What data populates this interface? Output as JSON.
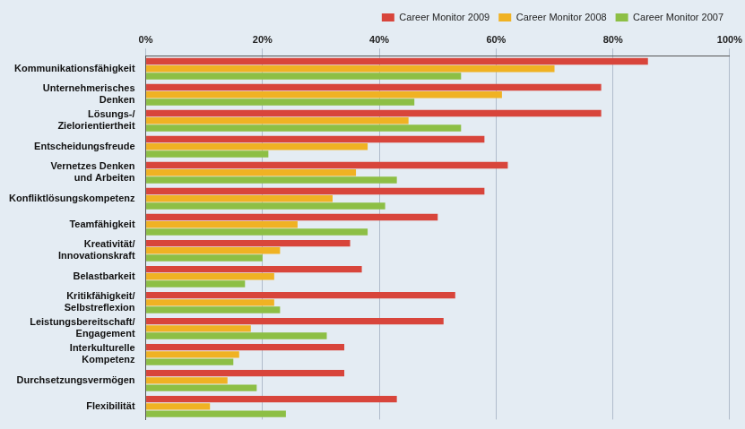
{
  "chart_data": {
    "type": "bar",
    "orientation": "horizontal",
    "categories": [
      "Kommunikationsfähigkeit",
      "Unternehmerisches Denken",
      "Lösungs-/Zielorientiertheit",
      "Entscheidungsfreude",
      "Vernetzes Denken und Arbeiten",
      "Konfliktlösungskompetenz",
      "Teamfähigkeit",
      "Kreativität/Innovationskraft",
      "Belastbarkeit",
      "Kritikfähigkeit/Selbstreflexion",
      "Leistungsbereitschaft/Engagement",
      "Interkulturelle Kompetenz",
      "Durchsetzungsvermögen",
      "Flexibilität"
    ],
    "series": [
      {
        "name": "Career Monitor 2009",
        "color": "#d8453b",
        "values": [
          86,
          78,
          78,
          58,
          62,
          58,
          50,
          35,
          37,
          53,
          51,
          34,
          34,
          43
        ]
      },
      {
        "name": "Career Monitor 2008",
        "color": "#f0b223",
        "values": [
          70,
          61,
          45,
          38,
          36,
          32,
          26,
          23,
          22,
          22,
          18,
          16,
          14,
          11
        ]
      },
      {
        "name": "Career Monitor 2007",
        "color": "#8dbf45",
        "values": [
          54,
          46,
          54,
          21,
          43,
          41,
          38,
          20,
          17,
          23,
          31,
          15,
          19,
          24
        ]
      }
    ],
    "xlim": [
      0,
      100
    ],
    "xticks": [
      {
        "value": 0,
        "label": "0%"
      },
      {
        "value": 20,
        "label": "20%"
      },
      {
        "value": 40,
        "label": "40%"
      },
      {
        "value": 60,
        "label": "60%"
      },
      {
        "value": 80,
        "label": "80%"
      },
      {
        "value": 100,
        "label": "100%"
      }
    ],
    "grid": true,
    "legend": "top-right"
  }
}
